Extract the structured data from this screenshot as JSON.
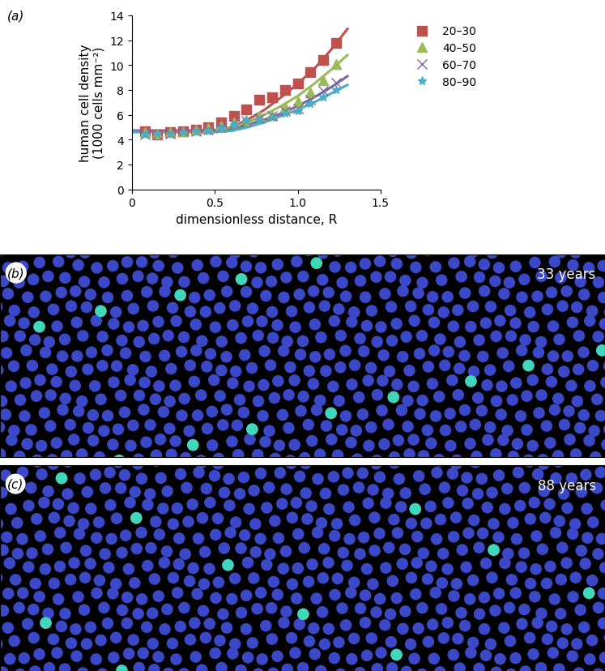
{
  "chart_data": {
    "type": "scatter",
    "panel": "(a)",
    "x_label": "dimensionless distance, R",
    "y_label": "human cell density\n(1000 cells mm⁻²)",
    "xlim": [
      0,
      1.5
    ],
    "xticks": [
      0,
      0.5,
      1.0,
      1.5
    ],
    "ylim": [
      0,
      14
    ],
    "yticks": [
      0,
      2,
      4,
      6,
      8,
      10,
      12,
      14
    ],
    "legend": "right",
    "x": [
      0.077,
      0.154,
      0.231,
      0.308,
      0.385,
      0.462,
      0.538,
      0.615,
      0.692,
      0.769,
      0.846,
      0.923,
      1.0,
      1.077,
      1.154,
      1.231
    ],
    "series": [
      {
        "name": "20–30",
        "color": "#c0504d",
        "marker": "square",
        "values": [
          4.7,
          4.4,
          4.6,
          4.7,
          4.8,
          5.0,
          5.4,
          5.9,
          6.4,
          7.2,
          7.4,
          8.0,
          8.5,
          9.4,
          10.4,
          11.8
        ],
        "fit": {
          "x": [
            0,
            0.1,
            0.2,
            0.3,
            0.4,
            0.5,
            0.6,
            0.7,
            0.8,
            0.9,
            1.0,
            1.1,
            1.2,
            1.3
          ],
          "values": [
            4.7,
            4.7,
            4.7,
            4.7,
            4.7,
            4.75,
            5.0,
            5.6,
            6.4,
            7.4,
            8.5,
            9.7,
            11.2,
            12.9
          ]
        }
      },
      {
        "name": "40–50",
        "color": "#9bbb59",
        "marker": "triangle",
        "values": [
          4.6,
          4.5,
          4.6,
          4.7,
          4.8,
          4.9,
          5.1,
          5.4,
          5.6,
          5.9,
          6.0,
          6.6,
          7.1,
          7.8,
          8.8,
          10.1
        ],
        "fit": {
          "x": [
            0,
            0.1,
            0.2,
            0.3,
            0.4,
            0.5,
            0.6,
            0.7,
            0.8,
            0.9,
            1.0,
            1.1,
            1.2,
            1.3
          ],
          "values": [
            4.75,
            4.75,
            4.75,
            4.75,
            4.75,
            4.8,
            4.95,
            5.4,
            6.0,
            6.7,
            7.5,
            8.5,
            9.6,
            10.8
          ]
        }
      },
      {
        "name": "60–70",
        "color": "#8064a2",
        "marker": "x",
        "values": [
          4.4,
          4.4,
          4.5,
          4.7,
          4.7,
          4.8,
          5.0,
          5.3,
          5.5,
          5.7,
          5.9,
          6.3,
          6.5,
          7.2,
          7.9,
          8.6
        ],
        "fit": {
          "x": [
            0,
            0.1,
            0.2,
            0.3,
            0.4,
            0.5,
            0.6,
            0.7,
            0.8,
            0.9,
            1.0,
            1.1,
            1.2,
            1.3
          ],
          "values": [
            4.7,
            4.7,
            4.7,
            4.7,
            4.7,
            4.7,
            4.8,
            5.2,
            5.6,
            6.1,
            6.7,
            7.4,
            8.2,
            9.1
          ]
        }
      },
      {
        "name": "80–90",
        "color": "#4bacc6",
        "marker": "star",
        "values": [
          4.4,
          4.5,
          4.5,
          4.6,
          4.7,
          4.7,
          4.9,
          5.2,
          5.5,
          5.6,
          5.8,
          6.1,
          6.3,
          6.9,
          7.4,
          8.0
        ],
        "fit": {
          "x": [
            0,
            0.1,
            0.2,
            0.3,
            0.4,
            0.5,
            0.6,
            0.7,
            0.8,
            0.9,
            1.0,
            1.1,
            1.2,
            1.3
          ],
          "values": [
            4.6,
            4.6,
            4.6,
            4.6,
            4.6,
            4.6,
            4.7,
            5.0,
            5.4,
            5.9,
            6.4,
            7.0,
            7.7,
            8.4
          ]
        }
      }
    ]
  },
  "images": [
    {
      "panel": "(b)",
      "label": "33 years"
    },
    {
      "panel": "(c)",
      "label": "88 years"
    }
  ]
}
